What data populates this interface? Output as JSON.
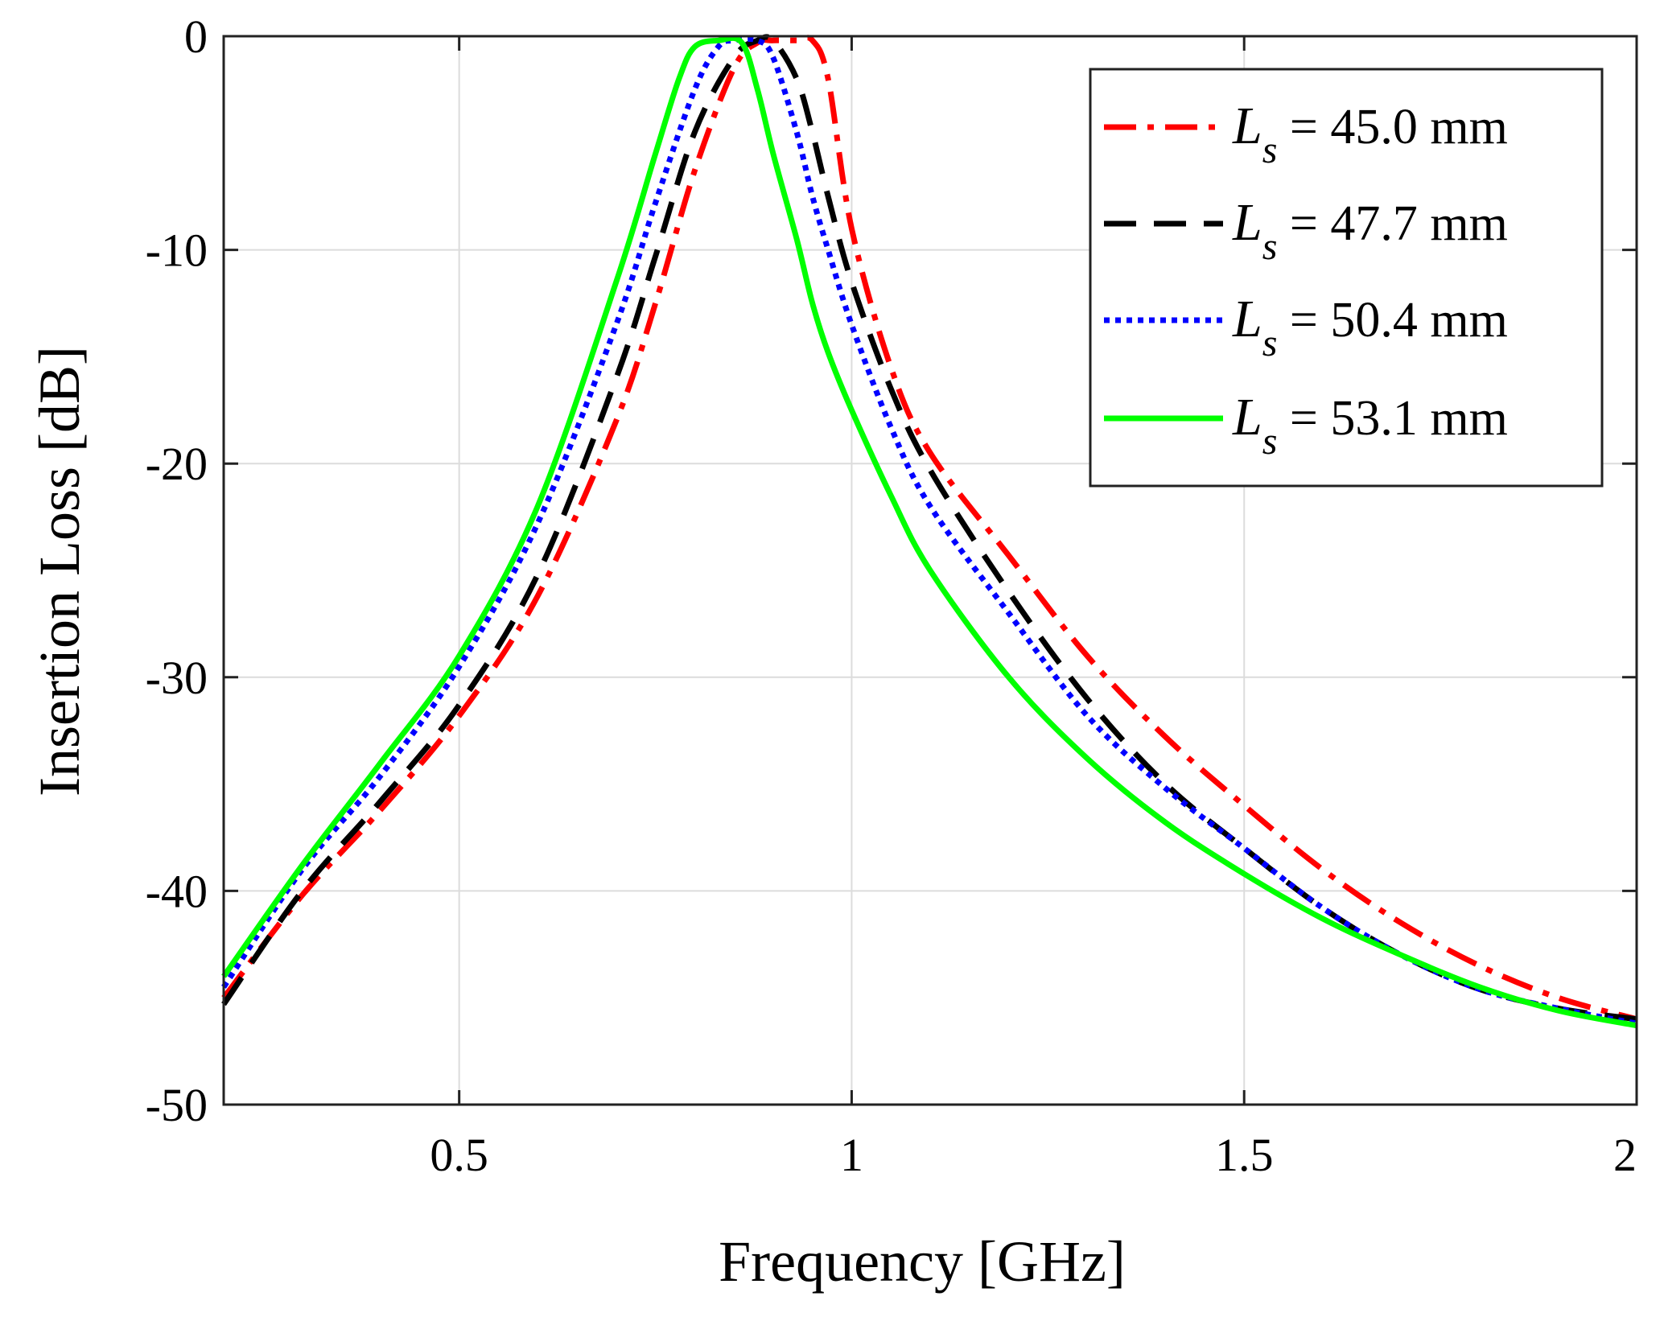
{
  "chart_data": {
    "type": "line",
    "title": "",
    "xlabel": "Frequency [GHz]",
    "ylabel": "Insertion Loss [dB]",
    "xlim": [
      0.2,
      2.0
    ],
    "ylim": [
      -50,
      0
    ],
    "xticks": [
      0.5,
      1,
      1.5,
      2
    ],
    "xtick_labels": [
      "0.5",
      "1",
      "1.5",
      "2"
    ],
    "yticks": [
      0,
      -10,
      -20,
      -30,
      -40,
      -50
    ],
    "ytick_labels": [
      "0",
      "-10",
      "-20",
      "-30",
      "-40",
      "-50"
    ],
    "grid": true,
    "legend_position": "top-right",
    "series": [
      {
        "name": "Ls = 45.0 mm",
        "legend_var": "L",
        "legend_sub": "s",
        "legend_value": " = 45.0 mm",
        "color": "#ff0000",
        "dash": "dash-dot",
        "x": [
          0.2,
          0.3,
          0.4,
          0.5,
          0.6,
          0.7,
          0.75,
          0.8,
          0.85,
          0.88,
          0.9,
          0.93,
          0.95,
          0.97,
          1.0,
          1.05,
          1.1,
          1.2,
          1.3,
          1.4,
          1.5,
          1.6,
          1.7,
          1.8,
          1.9,
          2.0
        ],
        "y": [
          -45,
          -40.2,
          -36.2,
          -31.8,
          -26.2,
          -18.0,
          -12.5,
          -6.3,
          -1.5,
          -0.3,
          -0.2,
          -0.2,
          -0.2,
          -2.0,
          -9.0,
          -15.5,
          -19.5,
          -24.3,
          -29.0,
          -32.8,
          -36.0,
          -39.0,
          -41.5,
          -43.5,
          -45.0,
          -46.0
        ]
      },
      {
        "name": "Ls = 47.7 mm",
        "legend_var": "L",
        "legend_sub": "s",
        "legend_value": " = 47.7 mm",
        "color": "#000000",
        "dash": "dash",
        "x": [
          0.2,
          0.3,
          0.4,
          0.5,
          0.6,
          0.7,
          0.75,
          0.8,
          0.85,
          0.88,
          0.9,
          0.93,
          0.95,
          0.97,
          1.0,
          1.05,
          1.1,
          1.2,
          1.3,
          1.4,
          1.5,
          1.6,
          1.7,
          1.8,
          1.9,
          2.0
        ],
        "y": [
          -45.3,
          -40.0,
          -35.8,
          -31.3,
          -25.2,
          -16.0,
          -10.3,
          -4.5,
          -1.0,
          -0.2,
          -0.2,
          -2.0,
          -4.5,
          -7.5,
          -11.5,
          -16.5,
          -20.3,
          -26.0,
          -31.0,
          -35.0,
          -38.0,
          -40.8,
          -43.0,
          -44.6,
          -45.5,
          -46.0
        ]
      },
      {
        "name": "Ls = 50.4 mm",
        "legend_var": "L",
        "legend_sub": "s",
        "legend_value": " = 50.4 mm",
        "color": "#0000ff",
        "dash": "dot",
        "x": [
          0.2,
          0.3,
          0.4,
          0.5,
          0.6,
          0.7,
          0.75,
          0.8,
          0.83,
          0.85,
          0.88,
          0.9,
          0.93,
          0.95,
          0.97,
          1.0,
          1.05,
          1.1,
          1.2,
          1.3,
          1.4,
          1.5,
          1.6,
          1.7,
          1.8,
          1.9,
          2.0
        ],
        "y": [
          -44.5,
          -39.0,
          -34.6,
          -29.5,
          -22.8,
          -13.5,
          -7.8,
          -2.5,
          -0.5,
          -0.2,
          -0.2,
          -1.0,
          -4.5,
          -7.5,
          -10.0,
          -13.5,
          -18.3,
          -22.0,
          -27.0,
          -31.8,
          -35.2,
          -38.0,
          -40.8,
          -43.0,
          -44.6,
          -45.5,
          -46.2
        ]
      },
      {
        "name": "Ls = 53.1 mm",
        "legend_var": "L",
        "legend_sub": "s",
        "legend_value": " = 53.1 mm",
        "color": "#00ff00",
        "dash": "solid",
        "x": [
          0.2,
          0.3,
          0.4,
          0.5,
          0.6,
          0.7,
          0.75,
          0.78,
          0.8,
          0.83,
          0.86,
          0.88,
          0.9,
          0.93,
          0.95,
          0.97,
          1.0,
          1.05,
          1.1,
          1.2,
          1.3,
          1.4,
          1.5,
          1.6,
          1.7,
          1.8,
          1.9,
          2.0
        ],
        "y": [
          -44.0,
          -38.8,
          -34.0,
          -29.0,
          -22.0,
          -11.5,
          -5.5,
          -2.0,
          -0.5,
          -0.2,
          -0.3,
          -2.5,
          -5.5,
          -9.5,
          -12.5,
          -14.8,
          -17.5,
          -21.5,
          -25.0,
          -30.0,
          -33.8,
          -36.8,
          -39.2,
          -41.3,
          -43.0,
          -44.5,
          -45.6,
          -46.3
        ]
      }
    ]
  }
}
